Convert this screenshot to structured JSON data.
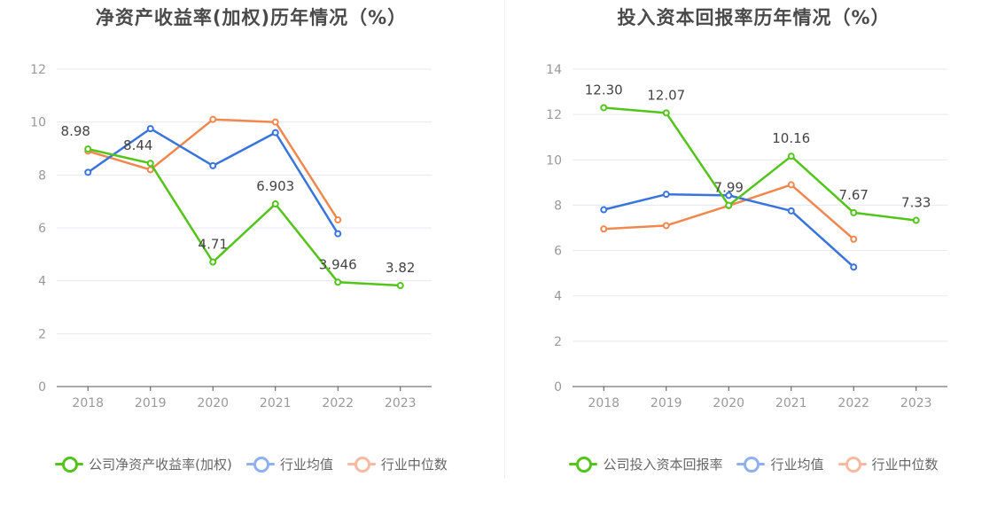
{
  "colors": {
    "company": "#52c41a",
    "avg": "#3874db",
    "median": "#f0874f",
    "avg_legend": "#8eaff0",
    "median_legend": "#f7b9a0",
    "grid": "#e6e8ef",
    "axis": "#555555",
    "tick": "#999999",
    "label": "#444444"
  },
  "chart_data": [
    {
      "type": "line",
      "title": "净资产收益率(加权)历年情况（%）",
      "categories": [
        "2018",
        "2019",
        "2020",
        "2021",
        "2022",
        "2023"
      ],
      "ylim": [
        0,
        12
      ],
      "yticks": [
        0,
        2,
        4,
        6,
        8,
        10,
        12
      ],
      "grid": true,
      "legend_position": "bottom",
      "series": [
        {
          "name": "公司净资产收益率(加权)",
          "key": "company",
          "values": [
            8.98,
            8.44,
            4.71,
            6.903,
            3.946,
            3.82
          ],
          "labels": [
            "8.98",
            "8.44",
            "4.71",
            "6.903",
            "3.946",
            "3.82"
          ]
        },
        {
          "name": "行业均值",
          "key": "avg",
          "values": [
            8.1,
            9.75,
            8.35,
            9.6,
            5.78,
            null
          ]
        },
        {
          "name": "行业中位数",
          "key": "median",
          "values": [
            8.9,
            8.2,
            10.1,
            10.0,
            6.3,
            null
          ]
        }
      ]
    },
    {
      "type": "line",
      "title": "投入资本回报率历年情况（%）",
      "categories": [
        "2018",
        "2019",
        "2020",
        "2021",
        "2022",
        "2023"
      ],
      "ylim": [
        0,
        14
      ],
      "yticks": [
        0,
        2,
        4,
        6,
        8,
        10,
        12,
        14
      ],
      "grid": true,
      "legend_position": "bottom",
      "series": [
        {
          "name": "公司投入资本回报率",
          "key": "company",
          "values": [
            12.3,
            12.07,
            7.99,
            10.16,
            7.67,
            7.33
          ],
          "labels": [
            "12.30",
            "12.07",
            "7.99",
            "10.16",
            "7.67",
            "7.33"
          ]
        },
        {
          "name": "行业均值",
          "key": "avg",
          "values": [
            7.8,
            8.48,
            8.43,
            7.75,
            5.27,
            null
          ]
        },
        {
          "name": "行业中位数",
          "key": "median",
          "values": [
            6.95,
            7.1,
            7.98,
            8.9,
            6.5,
            null
          ]
        }
      ]
    }
  ]
}
